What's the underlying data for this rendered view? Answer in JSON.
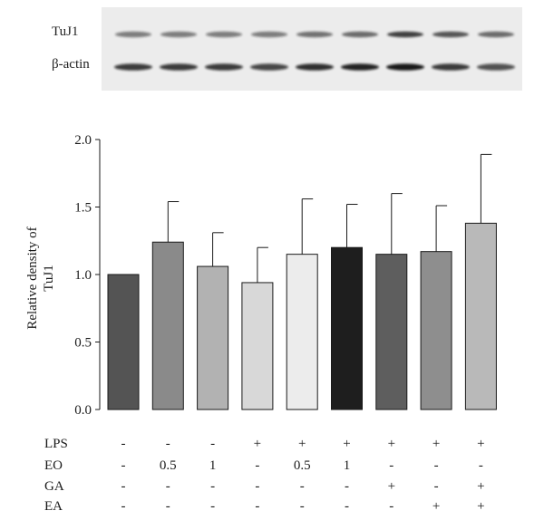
{
  "blot": {
    "labels": [
      "TuJ1",
      "β-actin"
    ]
  },
  "chart_data": {
    "type": "bar",
    "title": "",
    "xlabel": "",
    "ylabel": "Relative density of TuJ1",
    "ylim": [
      0,
      2.0
    ],
    "yticks": [
      0.0,
      0.5,
      1.0,
      1.5,
      2.0
    ],
    "ytick_labels": [
      "0.0",
      "0.5",
      "1.0",
      "1.5",
      "2.0"
    ],
    "grid": false,
    "values": [
      1.0,
      1.24,
      1.06,
      0.94,
      1.15,
      1.2,
      1.15,
      1.17,
      1.38
    ],
    "errors": [
      0.0,
      0.3,
      0.25,
      0.26,
      0.41,
      0.32,
      0.45,
      0.34,
      0.51
    ],
    "colors": [
      "#545454",
      "#8a8a8a",
      "#b2b2b2",
      "#d8d8d8",
      "#ececec",
      "#1e1e1e",
      "#5e5e5e",
      "#8e8e8e",
      "#b9b9b9"
    ],
    "treatment_table": {
      "row_labels": [
        "LPS",
        "EO",
        "GA",
        "EA"
      ],
      "rows": [
        [
          "-",
          "-",
          "-",
          "+",
          "+",
          "+",
          "+",
          "+",
          "+"
        ],
        [
          "-",
          "0.5",
          "1",
          "-",
          "0.5",
          "1",
          "-",
          "-",
          "-"
        ],
        [
          "-",
          "-",
          "-",
          "-",
          "-",
          "-",
          "+",
          "-",
          "+"
        ],
        [
          "-",
          "-",
          "-",
          "-",
          "-",
          "-",
          "-",
          "+",
          "+"
        ]
      ]
    }
  }
}
